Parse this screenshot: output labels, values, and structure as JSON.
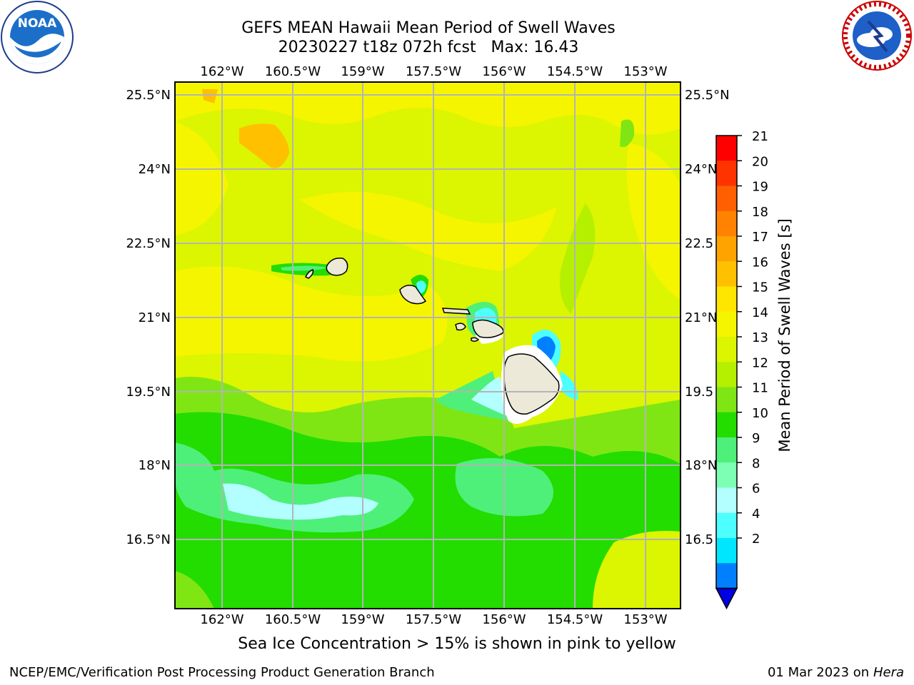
{
  "title": "GEFS MEAN Hawaii Mean Period of Swell Waves",
  "subtitle": "20230227 t18z 072h fcst   Max: 16.43",
  "footer_note": "Sea Ice Concentration > 15% is shown in pink to yellow",
  "credit_left": "NCEP/EMC/Verification Post Processing Product Generation Branch",
  "credit_date": "01 Mar 2023 on",
  "credit_machine": "Hera",
  "logos": {
    "left": "noaa-logo",
    "right": "nws-logo"
  },
  "map": {
    "lon_labels": [
      "162°W",
      "160.5°W",
      "159°W",
      "157.5°W",
      "156°W",
      "154.5°W",
      "153°W"
    ],
    "lat_labels": [
      "25.5°N",
      "24°N",
      "22.5°N",
      "21°N",
      "19.5°N",
      "18°N",
      "16.5°N"
    ],
    "lat_labels_right": [
      "25.5°N",
      "24°N",
      "22.5",
      "21°N",
      "19.5",
      "18°N",
      "16.5"
    ]
  },
  "colorbar": {
    "label": "Mean Period of Swell Waves [s]",
    "ticks": [
      "21",
      "20",
      "19",
      "18",
      "17",
      "16",
      "15",
      "14",
      "13",
      "12",
      "11",
      "10",
      "9",
      "8",
      "6",
      "4",
      "2"
    ],
    "colors": [
      "#ff0000",
      "#ff3300",
      "#ff5f00",
      "#ff8300",
      "#ffa300",
      "#ffc000",
      "#ffe600",
      "#f5f500",
      "#dcf500",
      "#b4f000",
      "#7fe614",
      "#23dc00",
      "#4ef07a",
      "#7dffb4",
      "#b3ffff",
      "#4dffff",
      "#00e6ff",
      "#0080ff"
    ],
    "extend_color": "#0000e6"
  }
}
